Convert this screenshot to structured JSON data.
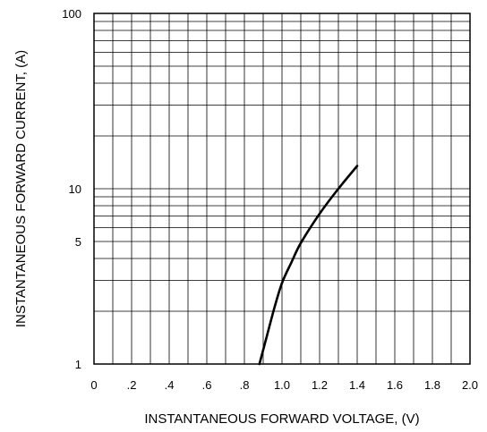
{
  "chart_data": {
    "type": "line",
    "title": "",
    "xlabel": "INSTANTANEOUS FORWARD VOLTAGE, (V)",
    "ylabel": "INSTANTANEOUS FORWARD CURRENT, (A)",
    "x_scale": "linear",
    "y_scale": "log",
    "xlim": [
      0,
      2.0
    ],
    "ylim": [
      1,
      100
    ],
    "grid": true,
    "legend": "none",
    "line_color": "#000000",
    "grid_color": "#000000",
    "x_ticks": [
      {
        "value": 0,
        "label": "0"
      },
      {
        "value": 0.2,
        "label": ".2"
      },
      {
        "value": 0.4,
        "label": ".4"
      },
      {
        "value": 0.6,
        "label": ".6"
      },
      {
        "value": 0.8,
        "label": ".8"
      },
      {
        "value": 1.0,
        "label": "1.0"
      },
      {
        "value": 1.2,
        "label": "1.2"
      },
      {
        "value": 1.4,
        "label": "1.4"
      },
      {
        "value": 1.6,
        "label": "1.6"
      },
      {
        "value": 1.8,
        "label": "1.8"
      },
      {
        "value": 2.0,
        "label": "2.0"
      }
    ],
    "y_ticks": [
      {
        "value": 1,
        "label": "1"
      },
      {
        "value": 5,
        "label": "5"
      },
      {
        "value": 10,
        "label": "10"
      },
      {
        "value": 100,
        "label": "100"
      }
    ],
    "x_grid_values": [
      0.1,
      0.2,
      0.3,
      0.4,
      0.5,
      0.6,
      0.7,
      0.8,
      0.9,
      1.0,
      1.1,
      1.2,
      1.3,
      1.4,
      1.5,
      1.6,
      1.7,
      1.8,
      1.9
    ],
    "y_grid_values": [
      2,
      3,
      4,
      5,
      6,
      7,
      8,
      9,
      10,
      20,
      30,
      40,
      50,
      60,
      70,
      80,
      90
    ],
    "series": [
      {
        "points": [
          {
            "x": 0.88,
            "y": 1.0
          },
          {
            "x": 0.92,
            "y": 1.45
          },
          {
            "x": 0.96,
            "y": 2.1
          },
          {
            "x": 1.0,
            "y": 2.9
          },
          {
            "x": 1.05,
            "y": 3.8
          },
          {
            "x": 1.1,
            "y": 4.9
          },
          {
            "x": 1.2,
            "y": 7.2
          },
          {
            "x": 1.3,
            "y": 10.0
          },
          {
            "x": 1.4,
            "y": 13.5
          }
        ]
      }
    ]
  }
}
